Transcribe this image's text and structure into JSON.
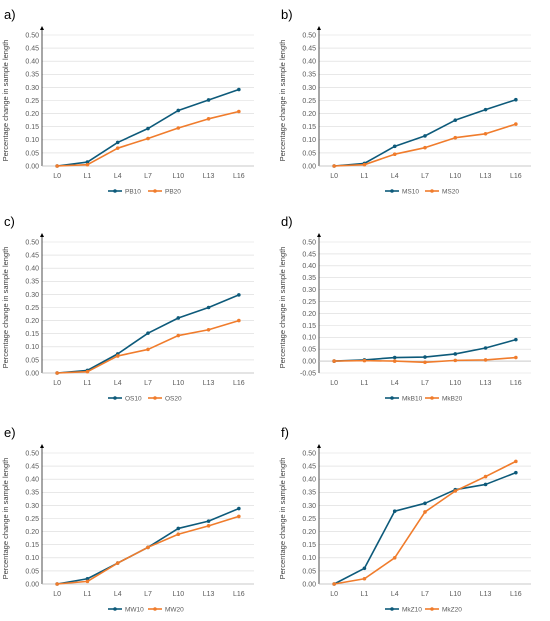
{
  "colors": {
    "series1": "#0d5a7a",
    "series2": "#f07c2c"
  },
  "chart_data": [
    {
      "type": "line",
      "panel": "a)",
      "ylabel": "Percentage change in sample length",
      "categories": [
        "L0",
        "L1",
        "L4",
        "L7",
        "L10",
        "L13",
        "L16"
      ],
      "ylim": [
        0,
        0.5
      ],
      "yticks": [
        "0.00",
        "0.05",
        "0.10",
        "0.15",
        "0.20",
        "0.25",
        "0.30",
        "0.35",
        "0.40",
        "0.45",
        "0.50"
      ],
      "grid": true,
      "legend": "bottom",
      "series": [
        {
          "name": "PB10",
          "values": [
            0,
            0.015,
            0.09,
            0.143,
            0.212,
            0.252,
            0.292
          ]
        },
        {
          "name": "PB20",
          "values": [
            0,
            0.005,
            0.068,
            0.105,
            0.145,
            0.18,
            0.208
          ]
        }
      ]
    },
    {
      "type": "line",
      "panel": "b)",
      "ylabel": "Percentage change in sample length",
      "categories": [
        "L0",
        "L1",
        "L4",
        "L7",
        "L10",
        "L13",
        "L16"
      ],
      "ylim": [
        0,
        0.5
      ],
      "yticks": [
        "0.00",
        "0.05",
        "0.10",
        "0.15",
        "0.20",
        "0.25",
        "0.30",
        "0.35",
        "0.40",
        "0.45",
        "0.50"
      ],
      "grid": true,
      "legend": "bottom",
      "series": [
        {
          "name": "MS10",
          "values": [
            0,
            0.01,
            0.075,
            0.115,
            0.175,
            0.215,
            0.253
          ]
        },
        {
          "name": "MS20",
          "values": [
            0,
            0.005,
            0.045,
            0.07,
            0.108,
            0.123,
            0.16
          ]
        }
      ]
    },
    {
      "type": "line",
      "panel": "c)",
      "ylabel": "Percentage change in sample length",
      "categories": [
        "L0",
        "L1",
        "L4",
        "L7",
        "L10",
        "L13",
        "L16"
      ],
      "ylim": [
        0,
        0.5
      ],
      "yticks": [
        "0.00",
        "0.05",
        "0.10",
        "0.15",
        "0.20",
        "0.25",
        "0.30",
        "0.35",
        "0.40",
        "0.45",
        "0.50"
      ],
      "grid": true,
      "legend": "bottom",
      "series": [
        {
          "name": "OS10",
          "values": [
            0,
            0.01,
            0.073,
            0.152,
            0.21,
            0.25,
            0.298
          ]
        },
        {
          "name": "OS20",
          "values": [
            0,
            0.005,
            0.065,
            0.09,
            0.143,
            0.165,
            0.2
          ]
        }
      ]
    },
    {
      "type": "line",
      "panel": "d)",
      "ylabel": "Percentage change in sample length",
      "categories": [
        "L0",
        "L1",
        "L4",
        "L7",
        "L10",
        "L13",
        "L16"
      ],
      "ylim": [
        -0.05,
        0.5
      ],
      "yticks": [
        "-0.05",
        "0.00",
        "0.05",
        "0.10",
        "0.15",
        "0.20",
        "0.25",
        "0.30",
        "0.35",
        "0.40",
        "0.45",
        "0.50"
      ],
      "grid": true,
      "legend": "bottom",
      "series": [
        {
          "name": "MkB10",
          "values": [
            0,
            0.005,
            0.015,
            0.017,
            0.03,
            0.055,
            0.09
          ]
        },
        {
          "name": "MkB20",
          "values": [
            0,
            0.002,
            0.0,
            -0.005,
            0.003,
            0.005,
            0.015
          ]
        }
      ]
    },
    {
      "type": "line",
      "panel": "e)",
      "ylabel": "Percentage change in sample length",
      "categories": [
        "L0",
        "L1",
        "L4",
        "L7",
        "L10",
        "L13",
        "L16"
      ],
      "ylim": [
        0,
        0.5
      ],
      "yticks": [
        "0.00",
        "0.05",
        "0.10",
        "0.15",
        "0.20",
        "0.25",
        "0.30",
        "0.35",
        "0.40",
        "0.45",
        "0.50"
      ],
      "grid": true,
      "legend": "bottom",
      "series": [
        {
          "name": "MW10",
          "values": [
            0,
            0.02,
            0.08,
            0.14,
            0.212,
            0.24,
            0.288
          ]
        },
        {
          "name": "MW20",
          "values": [
            0,
            0.01,
            0.08,
            0.14,
            0.19,
            0.222,
            0.258
          ]
        }
      ]
    },
    {
      "type": "line",
      "panel": "f)",
      "ylabel": "Percentage change in sample length",
      "categories": [
        "L0",
        "L1",
        "L4",
        "L7",
        "L10",
        "L13",
        "L16"
      ],
      "ylim": [
        0,
        0.5
      ],
      "yticks": [
        "0.00",
        "0.05",
        "0.10",
        "0.15",
        "0.20",
        "0.25",
        "0.30",
        "0.35",
        "0.40",
        "0.45",
        "0.50"
      ],
      "grid": true,
      "legend": "bottom",
      "series": [
        {
          "name": "MkZ10",
          "values": [
            0,
            0.06,
            0.278,
            0.308,
            0.36,
            0.38,
            0.425
          ]
        },
        {
          "name": "MkZ20",
          "values": [
            0,
            0.02,
            0.1,
            0.275,
            0.355,
            0.41,
            0.468
          ]
        }
      ]
    }
  ]
}
